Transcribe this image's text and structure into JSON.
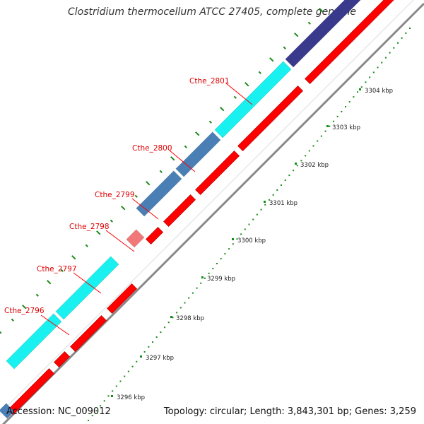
{
  "title": "Clostridium thermocellum ATCC 27405, complete genome",
  "footer": {
    "accession": "Accession: NC_009012",
    "summary": "Topology: circular; Length: 3,843,301 bp; Genes: 3,259"
  },
  "gene_labels": [
    "Cthe_2801",
    "Cthe_2800",
    "Cthe_2799",
    "Cthe_2798",
    "Cthe_2797",
    "Cthe_2796"
  ],
  "ruler_labels": [
    "3304 kbp",
    "3303 kbp",
    "3302 kbp",
    "3301 kbp",
    "3300 kbp",
    "3299 kbp",
    "3298 kbp",
    "3297 kbp",
    "3296 kbp"
  ],
  "colors": {
    "cyan_gene": "#19f0f0",
    "steel_blue_gene": "#4a7fb5",
    "dark_blue_gene": "#3a3a8c",
    "pink_gene": "#f07878",
    "red_gene": "#ff0000",
    "green_ticks": "#1a8a1a",
    "backbone": "#8a8a8a"
  }
}
